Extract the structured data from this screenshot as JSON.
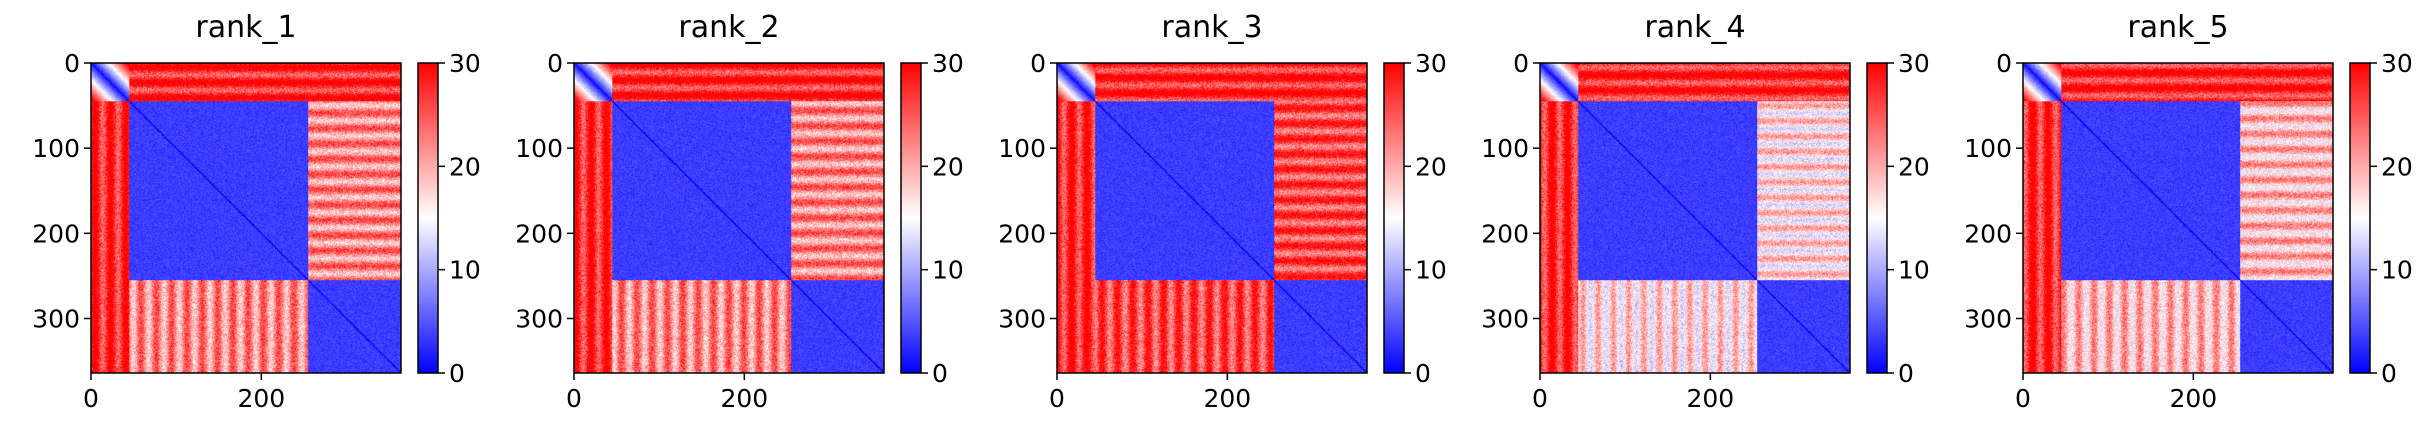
{
  "colors": {
    "low": "#0000ff",
    "mid": "#ffffff",
    "high": "#ff0000"
  },
  "chart_data": [
    {
      "type": "heatmap",
      "title": "rank_1",
      "size": 364,
      "vmin": 0,
      "vmax": 30,
      "xticks": [
        0,
        200
      ],
      "yticks": [
        0,
        100,
        200,
        300
      ],
      "cbar_ticks": [
        0,
        10,
        20,
        30
      ],
      "blocks": [
        [
          0,
          45
        ],
        [
          45,
          255
        ],
        [
          255,
          364
        ]
      ],
      "interblock": {
        "1-2": 22,
        "0-1": 28,
        "0-2": 28
      }
    },
    {
      "type": "heatmap",
      "title": "rank_2",
      "size": 364,
      "vmin": 0,
      "vmax": 30,
      "xticks": [
        0,
        200
      ],
      "yticks": [
        0,
        100,
        200,
        300
      ],
      "cbar_ticks": [
        0,
        10,
        20,
        30
      ],
      "blocks": [
        [
          0,
          45
        ],
        [
          45,
          255
        ],
        [
          255,
          364
        ]
      ],
      "interblock": {
        "1-2": 22,
        "0-1": 28,
        "0-2": 28
      }
    },
    {
      "type": "heatmap",
      "title": "rank_3",
      "size": 364,
      "vmin": 0,
      "vmax": 30,
      "xticks": [
        0,
        200
      ],
      "yticks": [
        0,
        100,
        200,
        300
      ],
      "cbar_ticks": [
        0,
        10,
        20,
        30
      ],
      "blocks": [
        [
          0,
          45
        ],
        [
          45,
          255
        ],
        [
          255,
          364
        ]
      ],
      "interblock": {
        "1-2": 26,
        "0-1": 28,
        "0-2": 28
      }
    },
    {
      "type": "heatmap",
      "title": "rank_4",
      "size": 364,
      "vmin": 0,
      "vmax": 30,
      "xticks": [
        0,
        200
      ],
      "yticks": [
        0,
        100,
        200,
        300
      ],
      "cbar_ticks": [
        0,
        10,
        20,
        30
      ],
      "blocks": [
        [
          0,
          45
        ],
        [
          45,
          255
        ],
        [
          255,
          364
        ]
      ],
      "interblock": {
        "1-2": 17,
        "0-1": 28,
        "0-2": 28
      }
    },
    {
      "type": "heatmap",
      "title": "rank_5",
      "size": 364,
      "vmin": 0,
      "vmax": 30,
      "xticks": [
        0,
        200
      ],
      "yticks": [
        0,
        100,
        200,
        300
      ],
      "cbar_ticks": [
        0,
        10,
        20,
        30
      ],
      "blocks": [
        [
          0,
          45
        ],
        [
          45,
          255
        ],
        [
          255,
          364
        ]
      ],
      "interblock": {
        "1-2": 19,
        "0-1": 28,
        "0-2": 28
      }
    }
  ]
}
